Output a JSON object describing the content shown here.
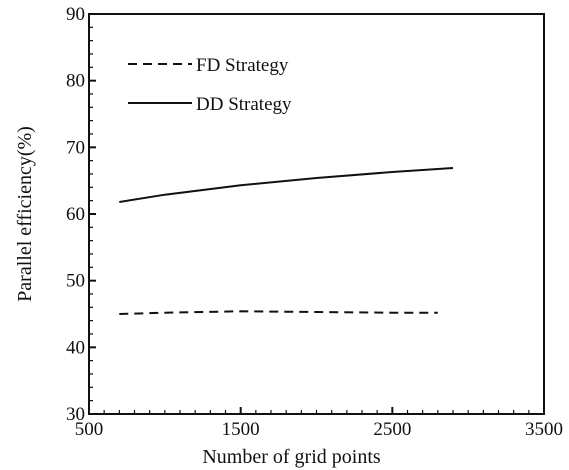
{
  "chart_data": {
    "type": "line",
    "title": "",
    "xlabel": "Number of grid points",
    "ylabel": "Parallel efficiency(%)",
    "xlim": [
      500,
      3500
    ],
    "ylim": [
      30,
      90
    ],
    "xticks": [
      "500",
      "1500",
      "2500",
      "3500"
    ],
    "yticks": [
      "30",
      "40",
      "50",
      "60",
      "70",
      "80",
      "90"
    ],
    "grid": false,
    "legend_position": "top-left",
    "series": [
      {
        "name": "FD Strategy",
        "style": "dashed",
        "color": "#111111",
        "x": [
          700,
          1000,
          1500,
          2000,
          2500,
          2800
        ],
        "y": [
          45.0,
          45.2,
          45.4,
          45.3,
          45.2,
          45.2
        ]
      },
      {
        "name": "DD Strategy",
        "style": "solid",
        "color": "#111111",
        "x": [
          700,
          1000,
          1500,
          2000,
          2500,
          2900
        ],
        "y": [
          61.8,
          62.9,
          64.3,
          65.4,
          66.3,
          66.9
        ]
      }
    ]
  }
}
